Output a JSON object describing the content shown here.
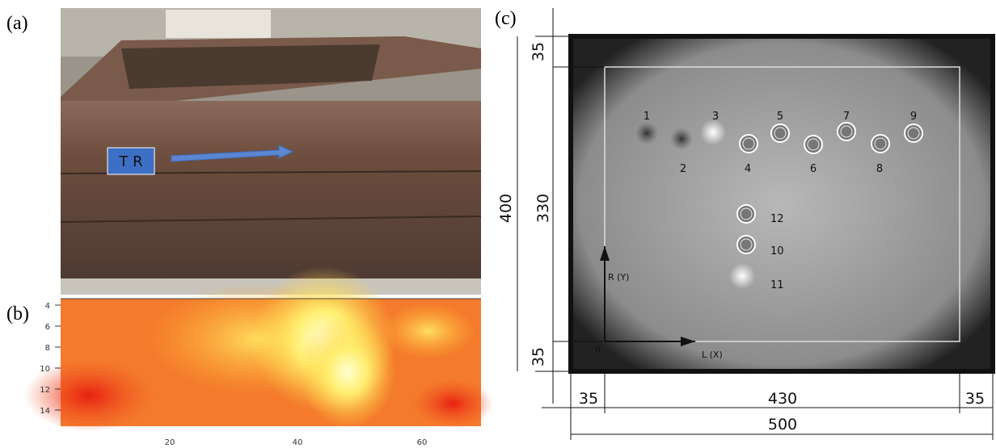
{
  "panels": {
    "a": {
      "label": "(a)",
      "marker": "T R"
    },
    "b": {
      "label": "(b)",
      "yticks": [
        4,
        6,
        8,
        10,
        12,
        14
      ],
      "xticks": [
        20,
        40,
        60
      ]
    },
    "c": {
      "label": "(c)",
      "targets": [
        "1",
        "2",
        "3",
        "4",
        "5",
        "6",
        "7",
        "8",
        "9",
        "12",
        "10",
        "11"
      ],
      "axis_y": "R (Y)",
      "axis_x": "L (X)",
      "origin": "0",
      "dimensions": {
        "top": 35,
        "height": 400,
        "inner_height": 330,
        "bottom": 35,
        "left": 35,
        "inner_width": 430,
        "right": 35,
        "width": 500
      }
    }
  }
}
